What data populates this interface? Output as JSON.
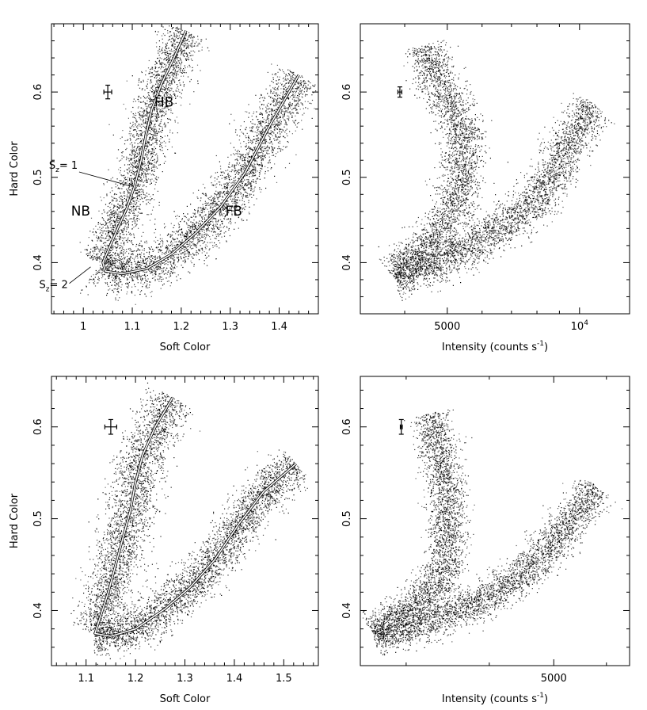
{
  "chart_data": [
    {
      "id": "top-left",
      "type": "scatter",
      "xlabel": "Soft Color",
      "ylabel": "Hard Color",
      "xlim": [
        0.935,
        1.48
      ],
      "ylim": [
        0.34,
        0.68
      ],
      "xscale": "linear",
      "xticks": [
        {
          "v": 1,
          "label": "1"
        },
        {
          "v": 1.1,
          "label": "1.1"
        },
        {
          "v": 1.2,
          "label": "1.2"
        },
        {
          "v": 1.3,
          "label": "1.3"
        },
        {
          "v": 1.4,
          "label": "1.4"
        }
      ],
      "yticks": [
        {
          "v": 0.4,
          "label": "0.4"
        },
        {
          "v": 0.5,
          "label": "0.5"
        },
        {
          "v": 0.6,
          "label": "0.6"
        }
      ],
      "branch_labels": [
        {
          "text": "HB",
          "x": 1.145,
          "y": 0.583
        },
        {
          "text": "NB",
          "x": 0.975,
          "y": 0.455
        },
        {
          "text": "FB",
          "x": 1.29,
          "y": 0.455
        }
      ],
      "sz_labels": [
        {
          "main": "S",
          "sub": "z",
          "rest": "= 1",
          "x": 0.93,
          "y": 0.51,
          "to": [
            1.095,
            0.49
          ]
        },
        {
          "main": "S",
          "sub": "z",
          "rest": "= 2",
          "x": 0.91,
          "y": 0.37,
          "to": [
            1.015,
            0.395
          ]
        }
      ],
      "error_bar": {
        "x": 1.05,
        "y": 0.6,
        "dx": 0.008,
        "dy": 0.008
      },
      "branches": [
        {
          "name": "HB",
          "path": [
            [
              1.21,
              0.672
            ],
            [
              1.185,
              0.64
            ],
            [
              1.16,
              0.61
            ],
            [
              1.14,
              0.58
            ],
            [
              1.128,
              0.55
            ],
            [
              1.118,
              0.52
            ],
            [
              1.105,
              0.49
            ],
            [
              1.085,
              0.465
            ],
            [
              1.065,
              0.44
            ],
            [
              1.05,
              0.42
            ],
            [
              1.035,
              0.4
            ]
          ],
          "width": 0.012
        },
        {
          "name": "NB-FB",
          "path": [
            [
              1.03,
              0.395
            ],
            [
              1.045,
              0.388
            ],
            [
              1.08,
              0.387
            ],
            [
              1.13,
              0.393
            ],
            [
              1.18,
              0.41
            ],
            [
              1.23,
              0.435
            ],
            [
              1.28,
              0.465
            ],
            [
              1.33,
              0.505
            ],
            [
              1.38,
              0.56
            ],
            [
              1.44,
              0.62
            ]
          ],
          "width": 0.013
        }
      ],
      "track": [
        [
          1.21,
          0.672
        ],
        [
          1.185,
          0.64
        ],
        [
          1.16,
          0.61
        ],
        [
          1.14,
          0.58
        ],
        [
          1.128,
          0.55
        ],
        [
          1.118,
          0.52
        ],
        [
          1.105,
          0.49
        ],
        [
          1.09,
          0.465
        ],
        [
          1.07,
          0.44
        ],
        [
          1.055,
          0.42
        ],
        [
          1.04,
          0.4
        ],
        [
          1.045,
          0.39
        ],
        [
          1.08,
          0.387
        ],
        [
          1.13,
          0.393
        ],
        [
          1.18,
          0.41
        ],
        [
          1.23,
          0.435
        ],
        [
          1.28,
          0.465
        ],
        [
          1.33,
          0.505
        ],
        [
          1.38,
          0.56
        ],
        [
          1.44,
          0.62
        ]
      ]
    },
    {
      "id": "top-right",
      "type": "scatter",
      "xlabel": "Intensity (counts s",
      "xlabel_sup": "-1",
      "xlabel_end": ")",
      "ylabel": "",
      "xlim": [
        3170,
        13000
      ],
      "ylim": [
        0.34,
        0.68
      ],
      "xscale": "log",
      "xticks": [
        {
          "v": 5000,
          "label": "5000"
        },
        {
          "v": 10000,
          "label": "10",
          "sup": "4"
        }
      ],
      "yticks": [
        {
          "v": 0.4,
          "label": "0.4"
        },
        {
          "v": 0.5,
          "label": "0.5"
        },
        {
          "v": 0.6,
          "label": "0.6"
        }
      ],
      "error_bar": {
        "x": 3900,
        "y": 0.6,
        "dx": 40,
        "dy": 0.006
      },
      "branches": [
        {
          "name": "upper",
          "path": [
            [
              4400,
              0.655
            ],
            [
              4550,
              0.63
            ],
            [
              4900,
              0.6
            ],
            [
              5300,
              0.57
            ],
            [
              5450,
              0.54
            ],
            [
              5400,
              0.51
            ],
            [
              5300,
              0.48
            ],
            [
              5000,
              0.45
            ],
            [
              4500,
              0.42
            ],
            [
              3950,
              0.395
            ],
            [
              3750,
              0.385
            ]
          ],
          "width": 0.012
        },
        {
          "name": "lower",
          "path": [
            [
              3800,
              0.385
            ],
            [
              4300,
              0.39
            ],
            [
              5200,
              0.41
            ],
            [
              6300,
              0.435
            ],
            [
              7500,
              0.46
            ],
            [
              8400,
              0.49
            ],
            [
              9200,
              0.53
            ],
            [
              9900,
              0.56
            ],
            [
              10800,
              0.585
            ]
          ],
          "width": 0.012
        }
      ]
    },
    {
      "id": "bottom-left",
      "type": "scatter",
      "xlabel": "Soft Color",
      "ylabel": "Hard Color",
      "xlim": [
        1.03,
        1.57
      ],
      "ylim": [
        0.34,
        0.655
      ],
      "xscale": "linear",
      "xticks": [
        {
          "v": 1.1,
          "label": "1.1"
        },
        {
          "v": 1.2,
          "label": "1.2"
        },
        {
          "v": 1.3,
          "label": "1.3"
        },
        {
          "v": 1.4,
          "label": "1.4"
        },
        {
          "v": 1.5,
          "label": "1.5"
        }
      ],
      "yticks": [
        {
          "v": 0.4,
          "label": "0.4"
        },
        {
          "v": 0.5,
          "label": "0.5"
        },
        {
          "v": 0.6,
          "label": "0.6"
        }
      ],
      "error_bar": {
        "x": 1.15,
        "y": 0.6,
        "dx": 0.012,
        "dy": 0.008
      },
      "branches": [
        {
          "name": "HB",
          "path": [
            [
              1.275,
              0.632
            ],
            [
              1.24,
              0.6
            ],
            [
              1.215,
              0.57
            ],
            [
              1.2,
              0.54
            ],
            [
              1.19,
              0.51
            ],
            [
              1.175,
              0.48
            ],
            [
              1.16,
              0.45
            ],
            [
              1.145,
              0.42
            ],
            [
              1.13,
              0.395
            ],
            [
              1.115,
              0.375
            ]
          ],
          "width": 0.013
        },
        {
          "name": "NB-FB",
          "path": [
            [
              1.115,
              0.372
            ],
            [
              1.15,
              0.372
            ],
            [
              1.2,
              0.38
            ],
            [
              1.26,
              0.402
            ],
            [
              1.31,
              0.425
            ],
            [
              1.36,
              0.455
            ],
            [
              1.41,
              0.495
            ],
            [
              1.46,
              0.53
            ],
            [
              1.525,
              0.56
            ]
          ],
          "width": 0.011
        }
      ],
      "track": [
        [
          1.275,
          0.632
        ],
        [
          1.24,
          0.6
        ],
        [
          1.215,
          0.57
        ],
        [
          1.2,
          0.54
        ],
        [
          1.19,
          0.51
        ],
        [
          1.175,
          0.48
        ],
        [
          1.16,
          0.45
        ],
        [
          1.145,
          0.42
        ],
        [
          1.13,
          0.395
        ],
        [
          1.118,
          0.375
        ],
        [
          1.15,
          0.372
        ],
        [
          1.2,
          0.38
        ],
        [
          1.26,
          0.402
        ],
        [
          1.31,
          0.425
        ],
        [
          1.36,
          0.455
        ],
        [
          1.41,
          0.495
        ],
        [
          1.46,
          0.53
        ],
        [
          1.525,
          0.56
        ]
      ]
    },
    {
      "id": "bottom-right",
      "type": "scatter",
      "xlabel": "Intensity (counts s",
      "xlabel_sup": "-1",
      "xlabel_end": ")",
      "ylabel": "",
      "xlim": [
        2560,
        6500
      ],
      "ylim": [
        0.34,
        0.655
      ],
      "xscale": "log",
      "xticks": [
        {
          "v": 5000,
          "label": "5000"
        }
      ],
      "yticks": [
        {
          "v": 0.4,
          "label": "0.4"
        },
        {
          "v": 0.5,
          "label": "0.5"
        },
        {
          "v": 0.6,
          "label": "0.6"
        }
      ],
      "error_bar": {
        "x": 2950,
        "y": 0.6,
        "dx": 10,
        "dy": 0.008
      },
      "branches": [
        {
          "name": "upper",
          "path": [
            [
              3250,
              0.615
            ],
            [
              3330,
              0.58
            ],
            [
              3420,
              0.55
            ],
            [
              3460,
              0.52
            ],
            [
              3480,
              0.49
            ],
            [
              3460,
              0.46
            ],
            [
              3400,
              0.44
            ],
            [
              3250,
              0.42
            ],
            [
              3050,
              0.405
            ],
            [
              2850,
              0.39
            ],
            [
              2680,
              0.375
            ]
          ],
          "width": 0.011
        },
        {
          "name": "lower",
          "path": [
            [
              2680,
              0.372
            ],
            [
              2900,
              0.378
            ],
            [
              3250,
              0.39
            ],
            [
              3700,
              0.405
            ],
            [
              4200,
              0.425
            ],
            [
              4650,
              0.45
            ],
            [
              5000,
              0.475
            ],
            [
              5400,
              0.505
            ],
            [
              5800,
              0.535
            ]
          ],
          "width": 0.01
        }
      ]
    }
  ]
}
